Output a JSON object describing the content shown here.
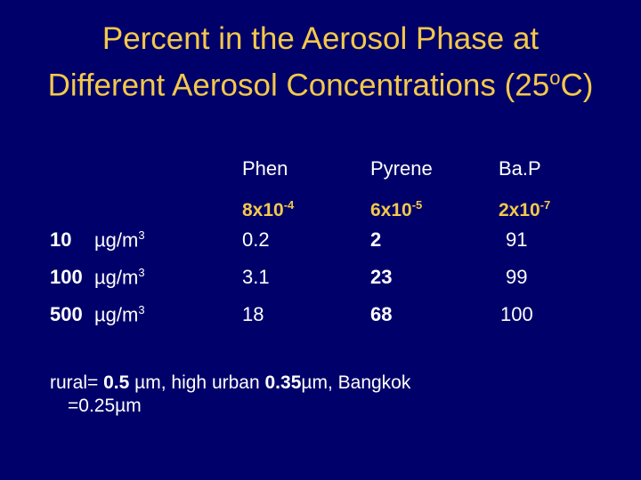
{
  "title": {
    "line1": "Percent  in the Aerosol Phase at",
    "line2_pre": "Different Aerosol Concentrations (25",
    "line2_sup": "o",
    "line2_post": "C)"
  },
  "table": {
    "columns": [
      {
        "name": "Phen",
        "coef_base": "8x10",
        "coef_exp": "-4"
      },
      {
        "name": "Pyrene",
        "coef_base": "6x10",
        "coef_exp": "-5"
      },
      {
        "name": "Ba.P",
        "coef_base": "2x10",
        "coef_exp": "-7"
      }
    ],
    "rows": [
      {
        "conc": "10",
        "unit": "µg/m",
        "unit_exp": "3",
        "values": [
          "0.2",
          "2",
          "91"
        ]
      },
      {
        "conc": "100",
        "unit": "µg/m",
        "unit_exp": "3",
        "values": [
          "3.1",
          "23",
          "99"
        ]
      },
      {
        "conc": "500",
        "unit": "µg/m",
        "unit_exp": "3",
        "values": [
          "18",
          "68",
          "100"
        ]
      }
    ]
  },
  "footnote": {
    "p1": "rural= ",
    "b1": "0.5",
    "p2": " µm, high urban ",
    "b2": "0.35",
    "p3": "µm, Bangkok",
    "line2": "=0.25µm"
  }
}
